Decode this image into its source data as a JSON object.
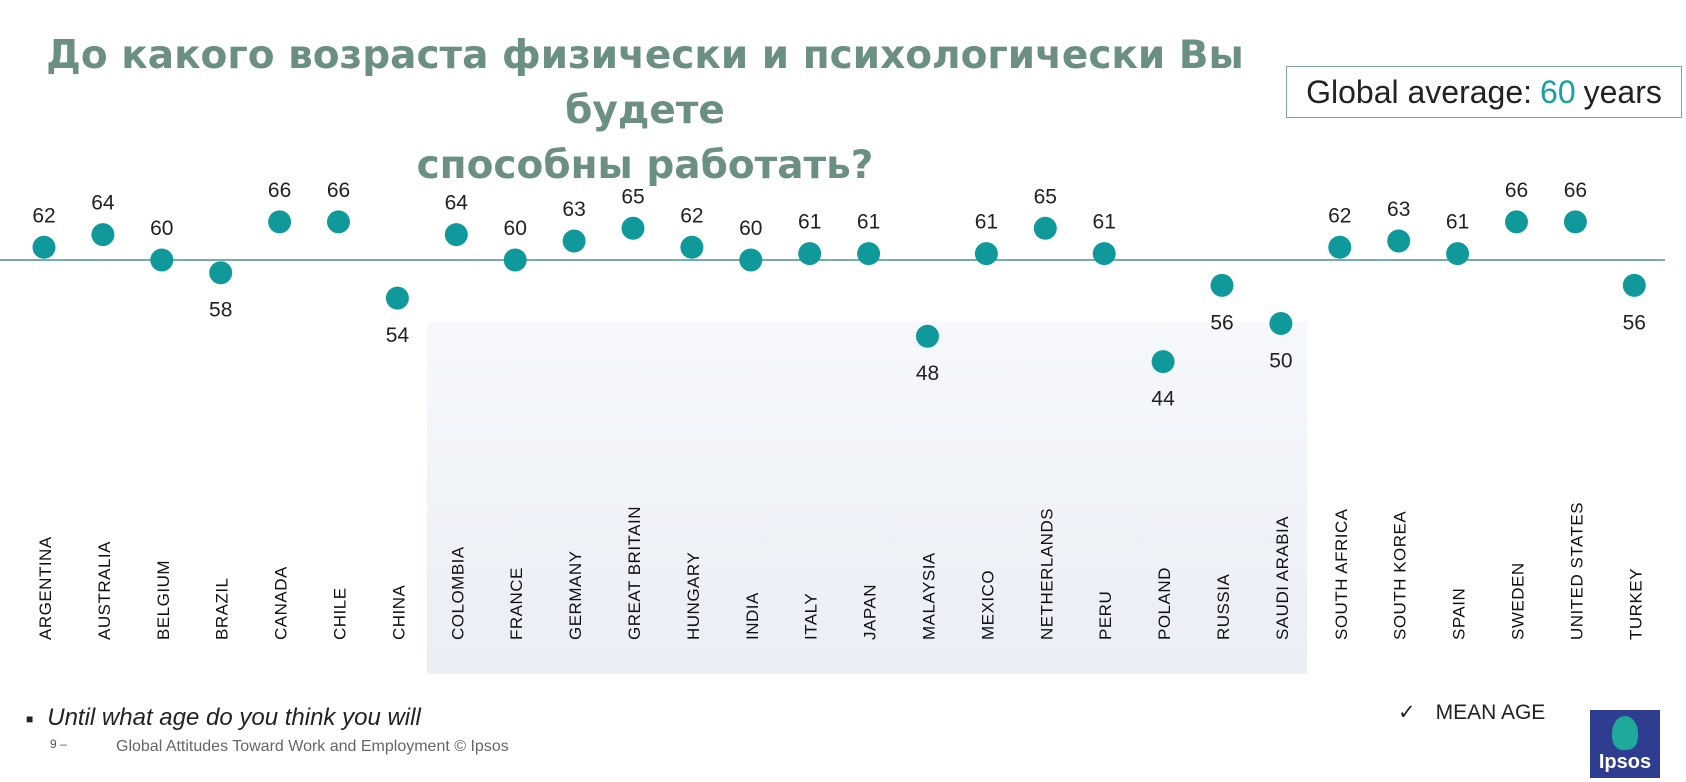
{
  "header": {
    "title_line1": "До какого возраста физически и психологически Вы будете",
    "title_line2": "способны работать?",
    "avg_prefix": "Global average:",
    "avg_value": "60",
    "avg_suffix": "years"
  },
  "footer": {
    "question": "Until what age do you think you will",
    "page_number": "9 –",
    "credit": "Global Attitudes Toward Work and Employment © Ipsos",
    "legend_label": "MEAN AGE",
    "logo_text": "Ipsos"
  },
  "colors": {
    "dot": "#10999a",
    "title": "#6b8f80",
    "line": "#4a8f92"
  },
  "chart_data": {
    "type": "scatter",
    "categories": [
      "Argentina",
      "Australia",
      "Belgium",
      "Brazil",
      "Canada",
      "Chile",
      "China",
      "Colombia",
      "France",
      "Germany",
      "Great Britain",
      "Hungary",
      "India",
      "Italy",
      "Japan",
      "Malaysia",
      "Mexico",
      "Netherlands",
      "Peru",
      "Poland",
      "Russia",
      "Saudi Arabia",
      "South Africa",
      "South Korea",
      "Spain",
      "Sweden",
      "United States",
      "Turkey"
    ],
    "values": [
      62,
      64,
      60,
      58,
      66,
      66,
      54,
      64,
      60,
      63,
      65,
      62,
      60,
      61,
      61,
      48,
      61,
      65,
      61,
      44,
      56,
      50,
      62,
      63,
      61,
      66,
      66,
      56
    ],
    "reference_line": 60
  }
}
